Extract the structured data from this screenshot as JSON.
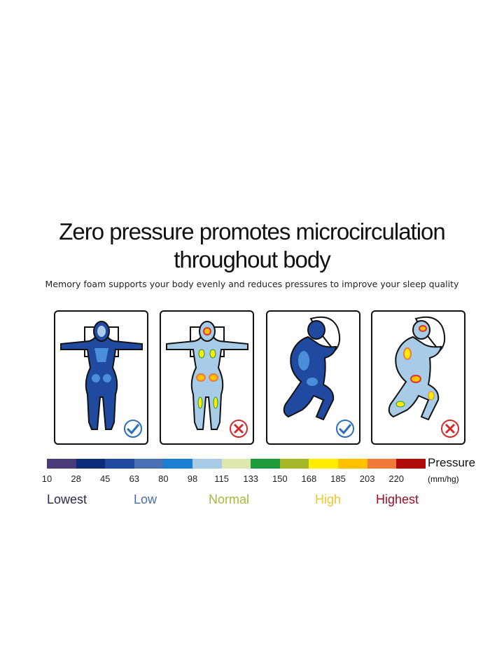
{
  "title_line1": "Zero pressure promotes microcirculation",
  "title_line2": "throughout body",
  "subtitle": "Memory foam supports your body evenly and reduces pressures to improve your sleep quality",
  "panels": [
    {
      "pose": "back",
      "mattress": "memory-foam",
      "verdict": "check-icon",
      "verdict_color": "#2a6fc0"
    },
    {
      "pose": "back",
      "mattress": "ordinary",
      "verdict": "cross-icon",
      "verdict_color": "#d42a2a"
    },
    {
      "pose": "side",
      "mattress": "memory-foam",
      "verdict": "check-icon",
      "verdict_color": "#2a6fc0"
    },
    {
      "pose": "side",
      "mattress": "ordinary",
      "verdict": "cross-icon",
      "verdict_color": "#d42a2a"
    }
  ],
  "scale": {
    "title": "Pressure",
    "unit": "(mm/hg)",
    "colors": [
      "#4a3a7a",
      "#0d2c7a",
      "#1f4aa0",
      "#4a6fb5",
      "#1a7fd0",
      "#a8cce8",
      "#dde8b0",
      "#1e9a3a",
      "#a6b82a",
      "#ffec00",
      "#ffc000",
      "#ef7a3a",
      "#b30a0a"
    ],
    "ticks": [
      "10",
      "28",
      "45",
      "63",
      "80",
      "98",
      "115",
      "133",
      "150",
      "168",
      "185",
      "203",
      "220"
    ],
    "levels": [
      {
        "label": "Lowest",
        "color": "#2a2a4a"
      },
      {
        "label": "Low",
        "color": "#4a6fa5"
      },
      {
        "label": "Normal",
        "color": "#a8b83a"
      },
      {
        "label": "High",
        "color": "#f0c830"
      },
      {
        "label": "Highest",
        "color": "#a01020"
      }
    ]
  }
}
